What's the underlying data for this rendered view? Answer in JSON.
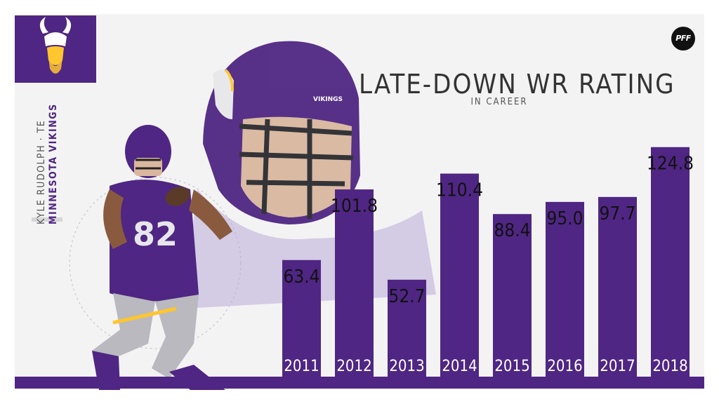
{
  "header": {
    "title": "LATE-DOWN WR RATING",
    "subtitle": "IN CAREER",
    "brand": "PFF"
  },
  "player": {
    "name": "KYLE RUDOLPH · TE",
    "team": "MINNESOTA VIKINGS",
    "jersey_number": "82",
    "helmet_text": "VIKINGS"
  },
  "colors": {
    "primary": "#4f2683",
    "accent": "#ffc62f",
    "background": "#f3f3f4"
  },
  "chart_data": {
    "type": "bar",
    "categories": [
      "2011",
      "2012",
      "2013",
      "2014",
      "2015",
      "2016",
      "2017",
      "2018"
    ],
    "values": [
      63.4,
      101.8,
      52.7,
      110.4,
      88.4,
      95.0,
      97.7,
      124.8
    ],
    "value_labels": [
      "63.4",
      "101.8",
      "52.7",
      "110.4",
      "88.4",
      "95.0",
      "97.7",
      "124.8"
    ],
    "title": "LATE-DOWN WR RATING",
    "subtitle": "IN CAREER",
    "ylim": [
      0,
      135
    ],
    "grid": false,
    "legend": "none"
  }
}
